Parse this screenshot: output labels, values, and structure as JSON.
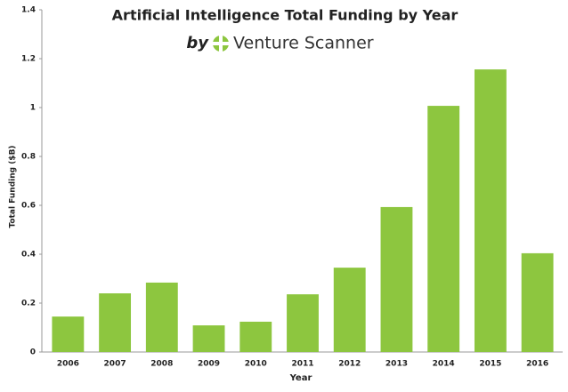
{
  "chart_data": {
    "type": "bar",
    "title": "Artificial Intelligence Total Funding by Year",
    "subtitle": [
      "by",
      "Venture Scanner"
    ],
    "x_label": "Year",
    "y_label": "Total Funding ($B)",
    "categories": [
      "2006",
      "2007",
      "2008",
      "2009",
      "2010",
      "2011",
      "2012",
      "2013",
      "2014",
      "2015",
      "2016"
    ],
    "values": [
      0.145,
      0.24,
      0.284,
      0.109,
      0.124,
      0.236,
      0.345,
      0.593,
      1.007,
      1.156,
      0.404
    ],
    "color": "#8dc63f",
    "ylim": [
      0,
      1.4
    ],
    "yticks": [
      0,
      0.2,
      0.4,
      0.6,
      0.8,
      1,
      1.2,
      1.4
    ],
    "grid": false
  }
}
